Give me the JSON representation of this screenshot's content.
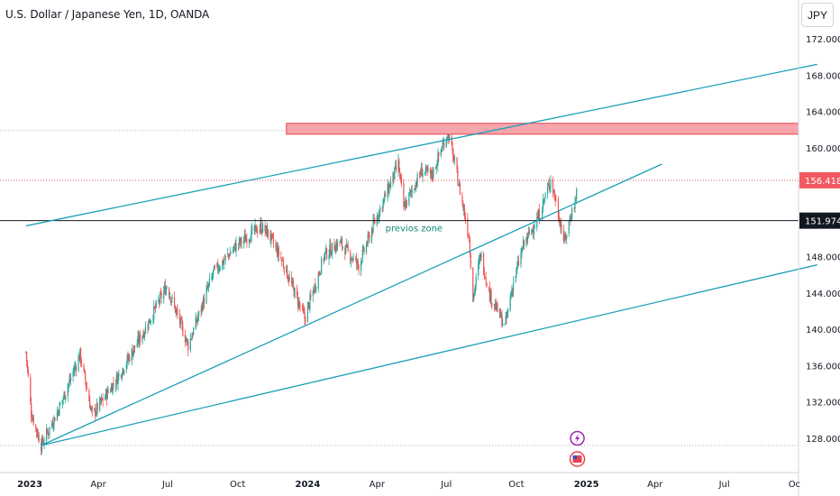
{
  "chart_data": {
    "type": "candlestick",
    "title": "U.S. Dollar / Japanese Yen, 1D, OANDA",
    "currency": "JPY",
    "x_ticks": [
      "2023",
      "Apr",
      "Jul",
      "Oct",
      "2024",
      "Apr",
      "Jul",
      "Oct",
      "2025",
      "Apr",
      "Jul",
      "Oc"
    ],
    "y_ticks": [
      "128.000",
      "132.000",
      "136.000",
      "140.000",
      "144.000",
      "148.000",
      "160.000",
      "164.000",
      "168.000",
      "172.000"
    ],
    "ylim": [
      125.6,
      174.8
    ],
    "last_price": "156.418",
    "last_price_value": 156.418,
    "horizontal_level": "151.974",
    "horizontal_level_value": 151.974,
    "annotation": "previos zone",
    "resistance_zone": {
      "from": 161.5,
      "to": 162.7
    },
    "dotted_levels": [
      161.9,
      127.2
    ],
    "colors": {
      "up": "#26a69a",
      "down": "#ef5350",
      "trendline": "#1ba0b8",
      "zone": "#f7a5ac",
      "zone_border": "#e5434f",
      "price_badge": "#f15a60"
    },
    "trendlines": [
      {
        "x1": "2022-12-27",
        "y1": 151.4,
        "x2": "2025-10-31",
        "y2": 169.2
      },
      {
        "x1": "2023-01-16",
        "y1": 127.2,
        "x2": "2025-04-10",
        "y2": 158.2
      },
      {
        "x1": "2023-01-16",
        "y1": 127.2,
        "x2": "2025-10-31",
        "y2": 147.1
      }
    ],
    "anchors": [
      [
        "2022-12-27",
        137.5
      ],
      [
        "2023-01-03",
        130.8
      ],
      [
        "2023-01-16",
        127.2
      ],
      [
        "2023-02-08",
        131.2
      ],
      [
        "2023-03-08",
        137.2
      ],
      [
        "2023-03-24",
        130.5
      ],
      [
        "2023-04-25",
        134.5
      ],
      [
        "2023-05-31",
        139.8
      ],
      [
        "2023-06-30",
        144.8
      ],
      [
        "2023-07-28",
        138.2
      ],
      [
        "2023-08-30",
        146.2
      ],
      [
        "2023-09-29",
        149.2
      ],
      [
        "2023-10-31",
        151.3
      ],
      [
        "2023-11-10",
        150.6
      ],
      [
        "2023-11-30",
        147.2
      ],
      [
        "2023-12-28",
        141.2
      ],
      [
        "2024-01-23",
        148.2
      ],
      [
        "2024-02-12",
        149.6
      ],
      [
        "2024-03-08",
        147.0
      ],
      [
        "2024-03-27",
        151.4
      ],
      [
        "2024-04-29",
        158.2
      ],
      [
        "2024-05-06",
        153.4
      ],
      [
        "2024-05-29",
        157.4
      ],
      [
        "2024-06-12",
        157.0
      ],
      [
        "2024-07-03",
        161.8
      ],
      [
        "2024-07-12",
        158.2
      ],
      [
        "2024-07-31",
        150.1
      ],
      [
        "2024-08-05",
        143.4
      ],
      [
        "2024-08-15",
        148.3
      ],
      [
        "2024-08-27",
        143.8
      ],
      [
        "2024-09-16",
        140.3
      ],
      [
        "2024-09-26",
        144.8
      ],
      [
        "2024-10-10",
        149.2
      ],
      [
        "2024-10-31",
        152.6
      ],
      [
        "2024-11-15",
        156.5
      ],
      [
        "2024-11-21",
        154.4
      ],
      [
        "2024-12-03",
        149.6
      ],
      [
        "2024-12-12",
        152.8
      ],
      [
        "2024-12-18",
        154.2
      ],
      [
        "2024-12-20",
        157.8
      ]
    ]
  }
}
